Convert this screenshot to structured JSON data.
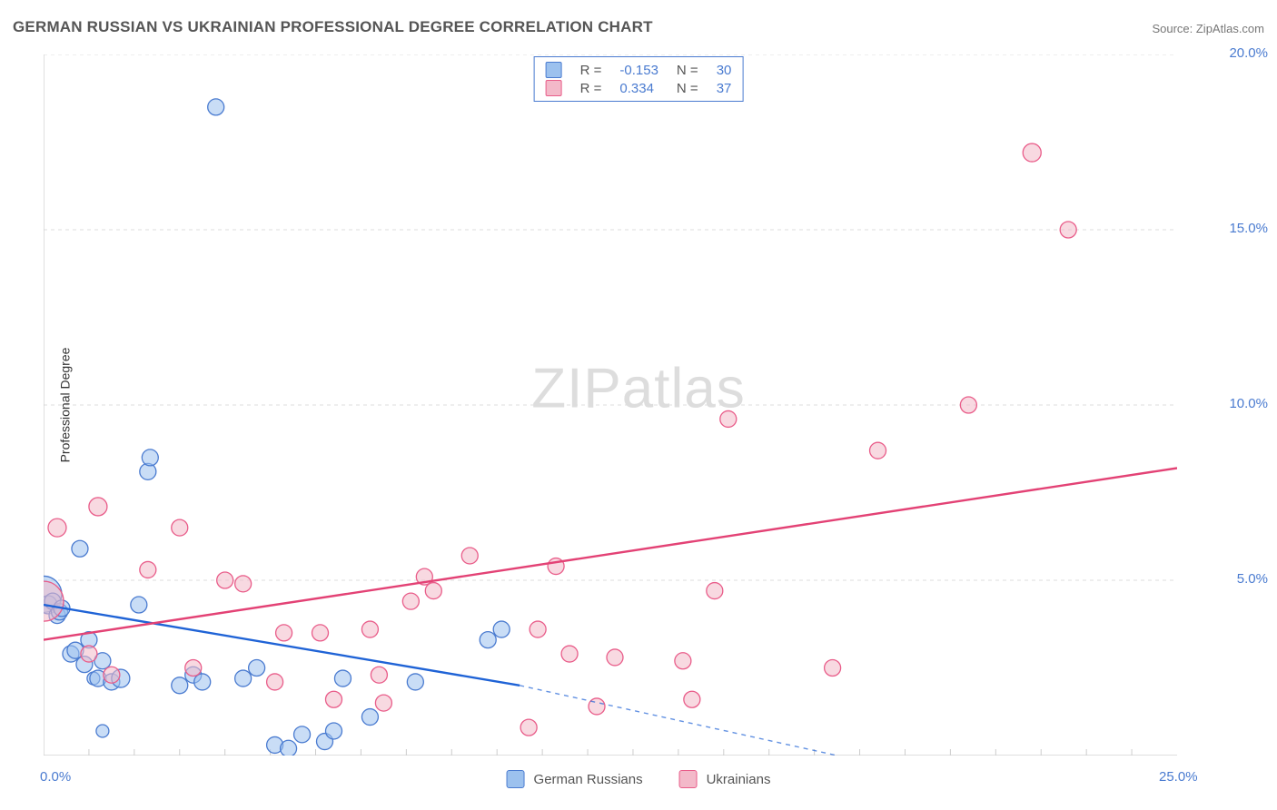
{
  "title": "GERMAN RUSSIAN VS UKRAINIAN PROFESSIONAL DEGREE CORRELATION CHART",
  "source": {
    "label": "Source: ",
    "value": "ZipAtlas.com"
  },
  "y_axis_label": "Professional Degree",
  "watermark": {
    "zip": "ZIP",
    "atlas": "atlas"
  },
  "chart": {
    "type": "scatter",
    "xlim": [
      0,
      25
    ],
    "ylim": [
      0,
      20
    ],
    "y_ticks": [
      {
        "v": 5,
        "label": "5.0%"
      },
      {
        "v": 10,
        "label": "10.0%"
      },
      {
        "v": 15,
        "label": "15.0%"
      },
      {
        "v": 20,
        "label": "20.0%"
      }
    ],
    "x_ticks": [
      {
        "v": 0,
        "label": "0.0%"
      },
      {
        "v": 25,
        "label": "25.0%"
      }
    ],
    "x_minor_ticks": [
      1,
      2,
      3,
      4,
      5,
      6,
      7,
      8,
      9,
      10,
      11,
      12,
      13,
      14,
      15,
      16,
      17,
      18,
      19,
      20,
      21,
      22,
      23,
      24
    ],
    "background_color": "#ffffff",
    "grid_color": "#dddddd",
    "axis_color": "#cccccc",
    "marker_radius": 9,
    "marker_opacity": 0.55,
    "marker_stroke_width": 1.3,
    "series": [
      {
        "name": "German Russians",
        "fill": "#9cc1ee",
        "stroke": "#4a7bd0",
        "line_color": "#1f63d6",
        "regression": {
          "x1": 0,
          "y1": 4.3,
          "x2": 10.5,
          "y2": 2.0,
          "dash_from_x": 10.5,
          "dash_to": {
            "x": 17.5,
            "y": 0.0
          }
        },
        "R": "-0.153",
        "N": "30",
        "points": [
          [
            0.0,
            4.6,
            20
          ],
          [
            0.1,
            4.3,
            10
          ],
          [
            0.2,
            4.4,
            9
          ],
          [
            0.3,
            4.0,
            9
          ],
          [
            0.35,
            4.1,
            9
          ],
          [
            0.4,
            4.2,
            9
          ],
          [
            0.6,
            2.9,
            9
          ],
          [
            0.7,
            3.0,
            9
          ],
          [
            0.8,
            5.9,
            9
          ],
          [
            0.9,
            2.6,
            9
          ],
          [
            1.0,
            3.3,
            9
          ],
          [
            1.1,
            2.2,
            7
          ],
          [
            1.2,
            2.2,
            9
          ],
          [
            1.3,
            0.7,
            7
          ],
          [
            1.3,
            2.7,
            9
          ],
          [
            1.5,
            2.1,
            9
          ],
          [
            1.7,
            2.2,
            10
          ],
          [
            2.1,
            4.3,
            9
          ],
          [
            2.3,
            8.1,
            9
          ],
          [
            2.35,
            8.5,
            9
          ],
          [
            3.0,
            2.0,
            9
          ],
          [
            3.3,
            2.3,
            9
          ],
          [
            3.5,
            2.1,
            9
          ],
          [
            3.8,
            18.5,
            9
          ],
          [
            4.4,
            2.2,
            9
          ],
          [
            4.7,
            2.5,
            9
          ],
          [
            5.1,
            0.3,
            9
          ],
          [
            5.4,
            0.2,
            9
          ],
          [
            5.7,
            0.6,
            9
          ],
          [
            6.2,
            0.4,
            9
          ],
          [
            6.4,
            0.7,
            9
          ],
          [
            6.6,
            2.2,
            9
          ],
          [
            7.2,
            1.1,
            9
          ],
          [
            8.2,
            2.1,
            9
          ],
          [
            9.8,
            3.3,
            9
          ],
          [
            10.1,
            3.6,
            9
          ]
        ]
      },
      {
        "name": "Ukrainians",
        "fill": "#f3b9c9",
        "stroke": "#e95d8a",
        "line_color": "#e34275",
        "regression": {
          "x1": 0,
          "y1": 3.3,
          "x2": 25,
          "y2": 8.2
        },
        "R": "0.334",
        "N": "37",
        "points": [
          [
            0.0,
            4.4,
            22
          ],
          [
            0.3,
            6.5,
            10
          ],
          [
            1.0,
            2.9,
            9
          ],
          [
            1.2,
            7.1,
            10
          ],
          [
            1.5,
            2.3,
            9
          ],
          [
            2.3,
            5.3,
            9
          ],
          [
            3.0,
            6.5,
            9
          ],
          [
            3.3,
            2.5,
            9
          ],
          [
            4.0,
            5.0,
            9
          ],
          [
            4.4,
            4.9,
            9
          ],
          [
            5.1,
            2.1,
            9
          ],
          [
            5.3,
            3.5,
            9
          ],
          [
            6.1,
            3.5,
            9
          ],
          [
            6.4,
            1.6,
            9
          ],
          [
            7.2,
            3.6,
            9
          ],
          [
            7.4,
            2.3,
            9
          ],
          [
            7.5,
            1.5,
            9
          ],
          [
            8.1,
            4.4,
            9
          ],
          [
            8.4,
            5.1,
            9
          ],
          [
            8.6,
            4.7,
            9
          ],
          [
            9.4,
            5.7,
            9
          ],
          [
            10.9,
            3.6,
            9
          ],
          [
            10.7,
            0.8,
            9
          ],
          [
            11.3,
            5.4,
            9
          ],
          [
            11.6,
            2.9,
            9
          ],
          [
            12.2,
            1.4,
            9
          ],
          [
            12.6,
            2.8,
            9
          ],
          [
            14.1,
            2.7,
            9
          ],
          [
            14.3,
            1.6,
            9
          ],
          [
            14.8,
            4.7,
            9
          ],
          [
            15.1,
            9.6,
            9
          ],
          [
            17.4,
            2.5,
            9
          ],
          [
            18.4,
            8.7,
            9
          ],
          [
            20.4,
            10.0,
            9
          ],
          [
            21.8,
            17.2,
            10
          ],
          [
            22.6,
            15.0,
            9
          ]
        ]
      }
    ]
  },
  "legend_top": {
    "rows": [
      {
        "swatch_fill": "#9cc1ee",
        "swatch_stroke": "#4a7bd0",
        "r_label": "R =",
        "r_value": "-0.153",
        "n_label": "N =",
        "n_value": "30"
      },
      {
        "swatch_fill": "#f3b9c9",
        "swatch_stroke": "#e95d8a",
        "r_label": "R =",
        "r_value": "0.334",
        "n_label": "N =",
        "n_value": "37"
      }
    ]
  },
  "legend_bottom": {
    "items": [
      {
        "label": "German Russians",
        "fill": "#9cc1ee",
        "stroke": "#4a7bd0"
      },
      {
        "label": "Ukrainians",
        "fill": "#f3b9c9",
        "stroke": "#e95d8a"
      }
    ]
  }
}
